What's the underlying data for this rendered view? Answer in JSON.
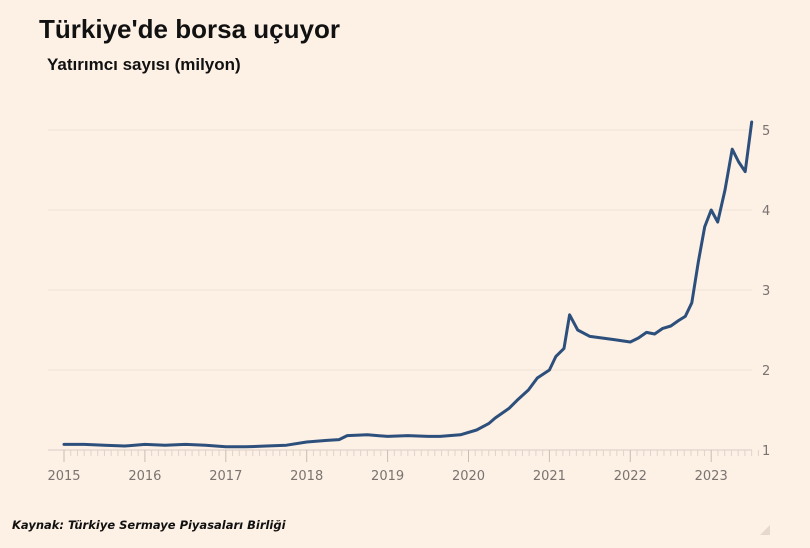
{
  "title": "Türkiye'de borsa uçuyor",
  "subtitle": "Yatırımcı sayısı (milyon)",
  "source": "Kaynak: Türkiye Sermaye Piyasaları Birliği",
  "colors": {
    "background": "#fdf0e5",
    "line": "#2c4f7c",
    "grid": "#f0e2d6",
    "tick_text": "#7a7370"
  },
  "chart_data": {
    "type": "line",
    "title": "Türkiye'de borsa uçuyor",
    "ylabel": "Yatırımcı sayısı (milyon)",
    "xlim": [
      2015,
      2023.6
    ],
    "ylim": [
      1,
      5.1
    ],
    "grid": true,
    "y_axis_side": "right",
    "x_ticks": [
      "2015",
      "2016",
      "2017",
      "2018",
      "2019",
      "2020",
      "2021",
      "2022",
      "2023"
    ],
    "y_ticks": [
      "1",
      "2",
      "3",
      "4",
      "5"
    ],
    "x": [
      2015.0,
      2015.25,
      2015.5,
      2015.75,
      2016.0,
      2016.25,
      2016.5,
      2016.75,
      2017.0,
      2017.25,
      2017.5,
      2017.75,
      2018.0,
      2018.25,
      2018.4,
      2018.5,
      2018.75,
      2019.0,
      2019.25,
      2019.5,
      2019.65,
      2019.9,
      2020.1,
      2020.25,
      2020.33,
      2020.5,
      2020.6,
      2020.74,
      2020.85,
      2021.0,
      2021.08,
      2021.18,
      2021.25,
      2021.35,
      2021.5,
      2021.65,
      2021.8,
      2022.0,
      2022.1,
      2022.2,
      2022.3,
      2022.4,
      2022.5,
      2022.6,
      2022.68,
      2022.76,
      2022.84,
      2022.92,
      2023.0,
      2023.08,
      2023.17,
      2023.26,
      2023.34,
      2023.42,
      2023.5
    ],
    "values": [
      1.07,
      1.07,
      1.06,
      1.05,
      1.07,
      1.06,
      1.07,
      1.06,
      1.04,
      1.04,
      1.05,
      1.06,
      1.1,
      1.12,
      1.13,
      1.18,
      1.19,
      1.17,
      1.18,
      1.17,
      1.17,
      1.19,
      1.25,
      1.33,
      1.4,
      1.52,
      1.62,
      1.75,
      1.9,
      2.0,
      2.17,
      2.27,
      2.69,
      2.5,
      2.42,
      2.4,
      2.38,
      2.35,
      2.4,
      2.47,
      2.45,
      2.52,
      2.55,
      2.62,
      2.67,
      2.84,
      3.35,
      3.79,
      4.0,
      3.85,
      4.25,
      4.76,
      4.6,
      4.48,
      5.1
    ]
  }
}
